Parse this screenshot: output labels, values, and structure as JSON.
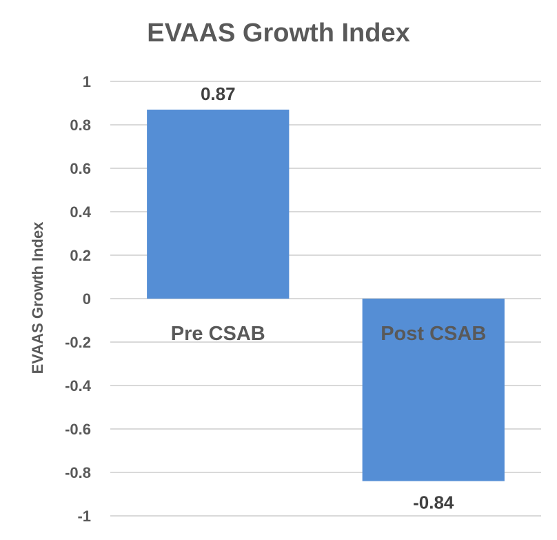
{
  "chart_data": {
    "type": "bar",
    "title": "EVAAS Growth Index",
    "xlabel": "",
    "ylabel": "EVAAS Growth Index",
    "categories": [
      "Pre CSAB",
      "Post CSAB"
    ],
    "values": [
      0.87,
      -0.84
    ],
    "data_labels": [
      "0.87",
      "-0.84"
    ],
    "ylim": [
      -1,
      1
    ],
    "yticks": [
      1,
      0.8,
      0.6,
      0.4,
      0.2,
      0,
      -0.2,
      -0.4,
      -0.6,
      -0.8,
      -1
    ],
    "ytick_labels": [
      "1",
      "0.8",
      "0.6",
      "0.4",
      "0.2",
      "0",
      "-0.2",
      "-0.4",
      "-0.6",
      "-0.8",
      "-1"
    ],
    "grid": true,
    "legend": "none",
    "bar_color": "#558ed5"
  }
}
